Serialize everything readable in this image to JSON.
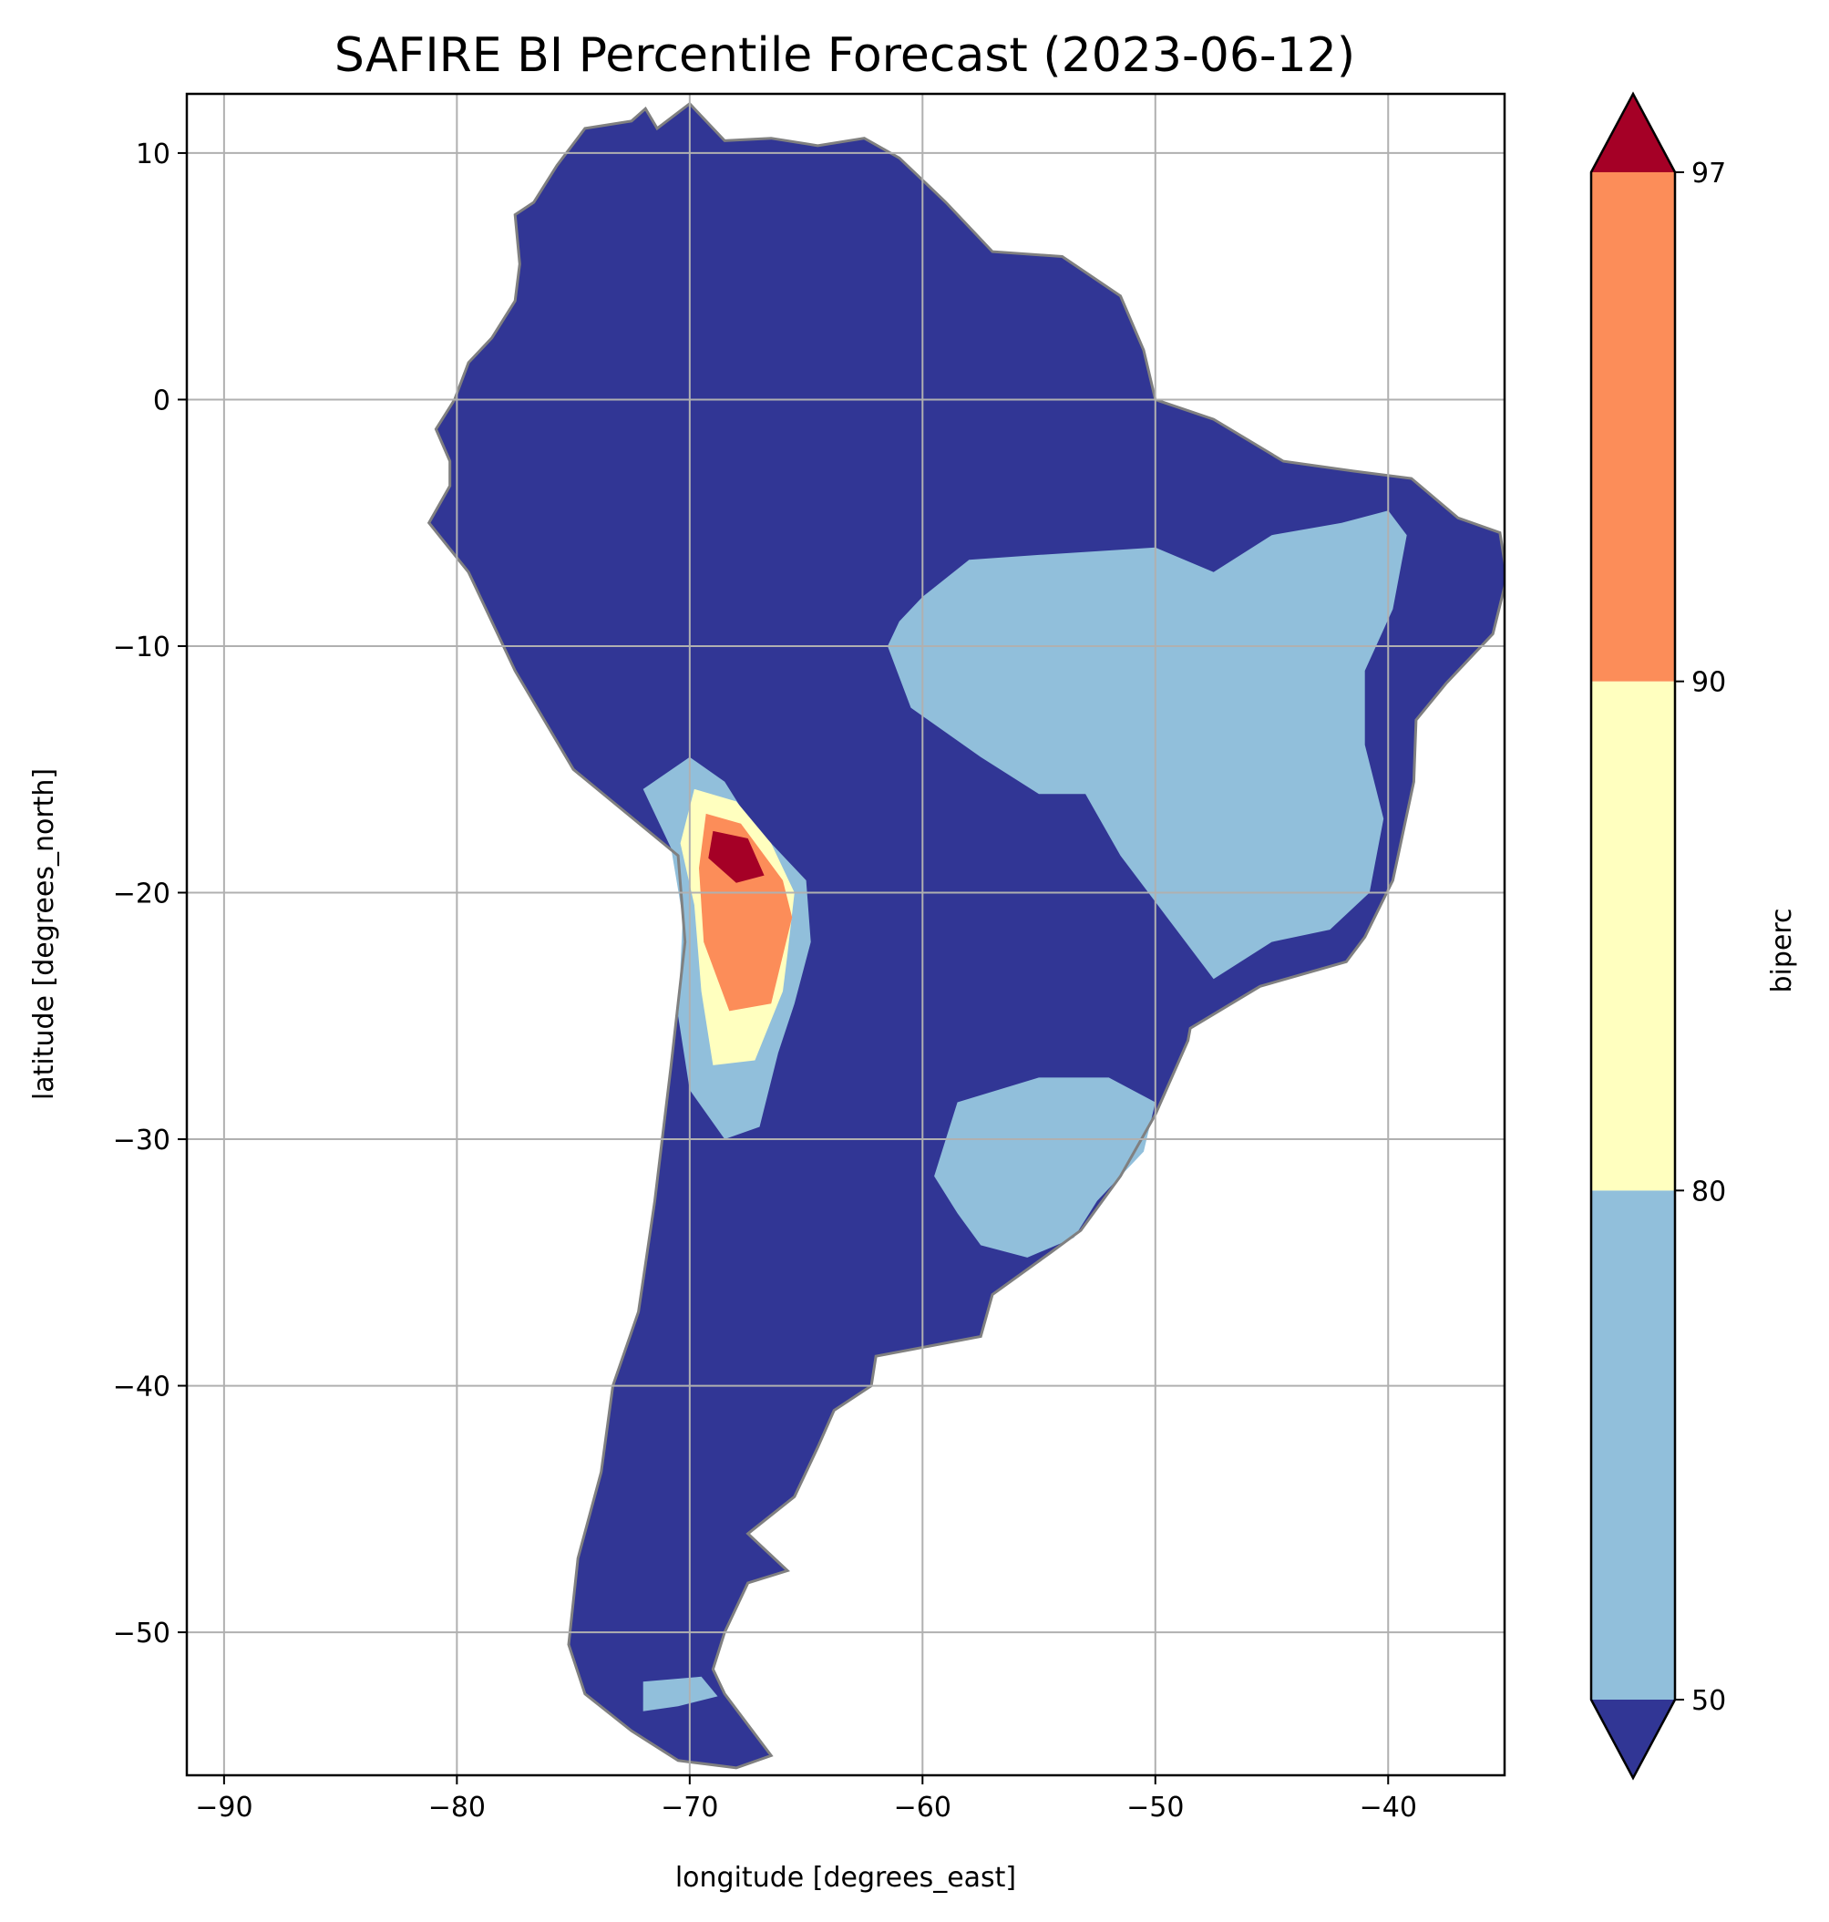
{
  "title": "SAFIRE BI Percentile Forecast (2023-06-12)",
  "xlabel": "longitude [degrees_east]",
  "ylabel": "latitude [degrees_north]",
  "colorbar_label": "biperc",
  "colors": {
    "below_50": "#313695",
    "c50_80": "#91bfdb",
    "c80_90": "#ffffbf",
    "c90_97": "#fc8d59",
    "above_97": "#a50026",
    "border": "#808080",
    "grid": "#b0b0b0"
  },
  "chart_data": {
    "type": "heatmap",
    "title": "SAFIRE BI Percentile Forecast (2023-06-12)",
    "xlabel": "longitude [degrees_east]",
    "ylabel": "latitude [degrees_north]",
    "xlim": [
      -91.6,
      -35.0
    ],
    "ylim": [
      -55.8,
      12.4
    ],
    "x_ticks": [
      -90,
      -80,
      -70,
      -60,
      -50,
      -40
    ],
    "y_ticks": [
      10,
      0,
      -10,
      -20,
      -30,
      -40,
      -50
    ],
    "x_tick_labels": [
      "−90",
      "−80",
      "−70",
      "−60",
      "−50",
      "−40"
    ],
    "y_tick_labels": [
      "10",
      "0",
      "−10",
      "−20",
      "−30",
      "−40",
      "−50"
    ],
    "grid": true,
    "colorbar": {
      "label": "biperc",
      "boundaries": [
        50,
        80,
        90,
        97
      ],
      "tick_labels": [
        "50",
        "80",
        "90",
        "97"
      ],
      "extend": "both"
    },
    "regions": [
      {
        "name": "continent",
        "class": "below_50",
        "lonlat": [
          [
            -80.3,
            -3.5
          ],
          [
            -81.2,
            -5.0
          ],
          [
            -79.5,
            -7.0
          ],
          [
            -77.5,
            -11.0
          ],
          [
            -75.0,
            -15.0
          ],
          [
            -70.5,
            -18.5
          ],
          [
            -70.2,
            -22.0
          ],
          [
            -70.8,
            -27.0
          ],
          [
            -71.5,
            -32.5
          ],
          [
            -72.2,
            -37.0
          ],
          [
            -73.3,
            -40.0
          ],
          [
            -73.8,
            -43.5
          ],
          [
            -74.8,
            -47.0
          ],
          [
            -75.2,
            -50.5
          ],
          [
            -74.5,
            -52.5
          ],
          [
            -72.5,
            -54.0
          ],
          [
            -70.5,
            -55.2
          ],
          [
            -68.0,
            -55.5
          ],
          [
            -66.5,
            -55.0
          ],
          [
            -68.5,
            -52.5
          ],
          [
            -69.0,
            -51.5
          ],
          [
            -68.5,
            -50.0
          ],
          [
            -67.5,
            -48.0
          ],
          [
            -65.8,
            -47.5
          ],
          [
            -67.5,
            -46.0
          ],
          [
            -65.5,
            -44.5
          ],
          [
            -64.5,
            -42.5
          ],
          [
            -63.8,
            -41.0
          ],
          [
            -62.2,
            -40.0
          ],
          [
            -62.0,
            -38.8
          ],
          [
            -57.5,
            -38.0
          ],
          [
            -57.0,
            -36.3
          ],
          [
            -54.5,
            -34.6
          ],
          [
            -53.2,
            -33.7
          ],
          [
            -51.5,
            -31.5
          ],
          [
            -50.0,
            -29.0
          ],
          [
            -48.6,
            -26.0
          ],
          [
            -48.5,
            -25.5
          ],
          [
            -45.5,
            -23.8
          ],
          [
            -41.8,
            -22.8
          ],
          [
            -41.0,
            -21.8
          ],
          [
            -39.8,
            -19.5
          ],
          [
            -38.9,
            -15.5
          ],
          [
            -38.8,
            -13.0
          ],
          [
            -37.5,
            -11.5
          ],
          [
            -35.5,
            -9.5
          ],
          [
            -34.9,
            -7.2
          ],
          [
            -35.2,
            -5.4
          ],
          [
            -37.0,
            -4.8
          ],
          [
            -39.0,
            -3.2
          ],
          [
            -41.5,
            -2.9
          ],
          [
            -44.5,
            -2.5
          ],
          [
            -47.5,
            -0.8
          ],
          [
            -50.0,
            0.0
          ],
          [
            -50.5,
            2.0
          ],
          [
            -51.5,
            4.2
          ],
          [
            -54.0,
            5.8
          ],
          [
            -57.0,
            6.0
          ],
          [
            -59.0,
            8.0
          ],
          [
            -61.0,
            9.8
          ],
          [
            -62.5,
            10.6
          ],
          [
            -64.5,
            10.3
          ],
          [
            -66.5,
            10.6
          ],
          [
            -68.5,
            10.5
          ],
          [
            -70.0,
            12.0
          ],
          [
            -71.4,
            11.0
          ],
          [
            -71.9,
            11.8
          ],
          [
            -72.5,
            11.3
          ],
          [
            -74.5,
            11.0
          ],
          [
            -75.7,
            9.5
          ],
          [
            -76.7,
            8.0
          ],
          [
            -77.5,
            7.5
          ],
          [
            -77.3,
            5.5
          ],
          [
            -77.5,
            4.0
          ],
          [
            -78.5,
            2.5
          ],
          [
            -79.5,
            1.5
          ],
          [
            -80.1,
            0.0
          ],
          [
            -80.9,
            -1.2
          ],
          [
            -80.3,
            -2.5
          ]
        ]
      },
      {
        "name": "central-brazil-region",
        "class": "c50_80",
        "lonlat": [
          [
            -61.0,
            -9.0
          ],
          [
            -60.0,
            -8.0
          ],
          [
            -58.0,
            -6.5
          ],
          [
            -55.0,
            -6.3
          ],
          [
            -50.0,
            -6.0
          ],
          [
            -47.5,
            -7.0
          ],
          [
            -45.0,
            -5.5
          ],
          [
            -42.0,
            -5.0
          ],
          [
            -40.0,
            -4.5
          ],
          [
            -39.2,
            -5.5
          ],
          [
            -39.8,
            -8.5
          ],
          [
            -41.0,
            -11.0
          ],
          [
            -41.0,
            -14.0
          ],
          [
            -40.2,
            -17.0
          ],
          [
            -40.8,
            -20.0
          ],
          [
            -42.5,
            -21.5
          ],
          [
            -45.0,
            -22.0
          ],
          [
            -47.5,
            -23.5
          ],
          [
            -49.5,
            -21.0
          ],
          [
            -51.5,
            -18.5
          ],
          [
            -53.0,
            -16.0
          ],
          [
            -55.0,
            -16.0
          ],
          [
            -57.5,
            -14.5
          ],
          [
            -60.5,
            -12.5
          ],
          [
            -61.5,
            -10.0
          ]
        ]
      },
      {
        "name": "southern-brazil-uruguay-region",
        "class": "c50_80",
        "lonlat": [
          [
            -58.5,
            -28.5
          ],
          [
            -55.0,
            -27.5
          ],
          [
            -52.0,
            -27.5
          ],
          [
            -50.0,
            -28.5
          ],
          [
            -50.5,
            -30.5
          ],
          [
            -52.5,
            -32.5
          ],
          [
            -53.5,
            -34.0
          ],
          [
            -55.5,
            -34.8
          ],
          [
            -57.5,
            -34.3
          ],
          [
            -58.5,
            -33.0
          ],
          [
            -59.5,
            -31.5
          ]
        ]
      },
      {
        "name": "central-andes-region",
        "class": "c50_80",
        "lonlat": [
          [
            -72.0,
            -15.8
          ],
          [
            -70.0,
            -14.5
          ],
          [
            -68.5,
            -15.5
          ],
          [
            -67.5,
            -17.0
          ],
          [
            -65.0,
            -19.5
          ],
          [
            -64.8,
            -22.0
          ],
          [
            -65.5,
            -24.5
          ],
          [
            -66.2,
            -26.5
          ],
          [
            -67.0,
            -29.5
          ],
          [
            -68.5,
            -30.0
          ],
          [
            -70.0,
            -28.0
          ],
          [
            -70.5,
            -25.0
          ],
          [
            -70.3,
            -21.0
          ],
          [
            -70.8,
            -18.2
          ]
        ]
      },
      {
        "name": "altiplano-region",
        "class": "c80_90",
        "lonlat": [
          [
            -69.8,
            -15.8
          ],
          [
            -68.0,
            -16.3
          ],
          [
            -66.5,
            -18.0
          ],
          [
            -65.5,
            -20.0
          ],
          [
            -65.8,
            -22.5
          ],
          [
            -66.0,
            -24.0
          ],
          [
            -67.2,
            -26.8
          ],
          [
            -69.0,
            -27.0
          ],
          [
            -69.5,
            -24.0
          ],
          [
            -69.8,
            -20.5
          ],
          [
            -70.4,
            -18.0
          ]
        ]
      },
      {
        "name": "southern-bolivia-region",
        "class": "c90_97",
        "lonlat": [
          [
            -69.3,
            -16.8
          ],
          [
            -67.8,
            -17.2
          ],
          [
            -66.0,
            -19.5
          ],
          [
            -65.6,
            -21.0
          ],
          [
            -66.5,
            -24.5
          ],
          [
            -68.3,
            -24.8
          ],
          [
            -69.4,
            -22.0
          ],
          [
            -69.6,
            -19.0
          ]
        ]
      },
      {
        "name": "uyuni-region",
        "class": "above_97",
        "lonlat": [
          [
            -69.0,
            -17.5
          ],
          [
            -67.5,
            -17.8
          ],
          [
            -66.8,
            -19.3
          ],
          [
            -68.0,
            -19.6
          ],
          [
            -69.2,
            -18.6
          ]
        ]
      },
      {
        "name": "tierra-del-fuego-region",
        "class": "c50_80",
        "lonlat": [
          [
            -72.0,
            -52.0
          ],
          [
            -69.5,
            -51.8
          ],
          [
            -68.8,
            -52.6
          ],
          [
            -70.5,
            -53.0
          ],
          [
            -72.0,
            -53.2
          ]
        ]
      }
    ]
  }
}
